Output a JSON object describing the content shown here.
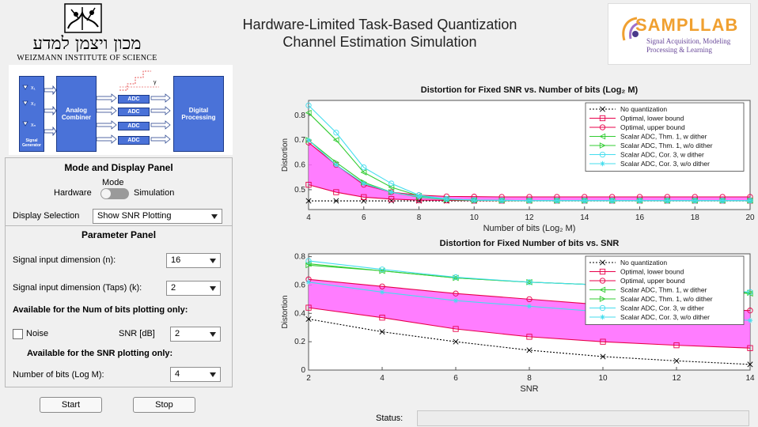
{
  "header": {
    "title_line1": "Hardware-Limited Task-Based Quantization",
    "title_line2": "Channel Estimation Simulation",
    "weizmann_hebrew": "מכון ויצמן למדע",
    "weizmann_english": "WEIZMANN INSTITUTE OF SCIENCE",
    "sampl_name": "SAMPLLAB",
    "sampl_tagline_1": "Signal Acquisition, Modeling",
    "sampl_tagline_2": "Processing & Learning"
  },
  "diagram": {
    "combiner_label": "Analog Combiner",
    "processing_label": "Digital Processing",
    "adc_label": "ADC",
    "generator_label": "Signal Generator",
    "inputs": [
      "x₁",
      "x₂",
      "xₙ"
    ],
    "gamma_label": "γ"
  },
  "mode_panel": {
    "title": "Mode and Display Panel",
    "mode_label": "Mode",
    "hardware_label": "Hardware",
    "simulation_label": "Simulation",
    "display_label": "Display Selection",
    "display_value": "Show SNR Plotting"
  },
  "parameter_panel": {
    "title": "Parameter Panel",
    "n_label": "Signal input dimension (n):",
    "n_value": "16",
    "k_label": "Signal input dimension (Taps) (k):",
    "k_value": "2",
    "bits_only_label": "Available for the Num of bits plotting only:",
    "noise_label": "Noise",
    "snr_label": "SNR [dB]",
    "snr_value": "2",
    "snr_only_label": "Available for the SNR plotting only:",
    "bits_label": "Number of bits (Log M):",
    "bits_value": "4"
  },
  "controls": {
    "start_label": "Start",
    "stop_label": "Stop",
    "status_label": "Status:"
  },
  "chart_data": [
    {
      "type": "line",
      "title": "Distortion for Fixed SNR vs. Number of bits (Log₂ M)",
      "xlabel": "Number of bits (Log₂ M)",
      "ylabel": "Distortion",
      "xlim": [
        4,
        20
      ],
      "ylim": [
        0.42,
        0.86
      ],
      "xticks": [
        4,
        6,
        8,
        10,
        12,
        14,
        16,
        18,
        20
      ],
      "yticks": [
        0.5,
        0.6,
        0.7,
        0.8
      ],
      "legend_position": "top-right",
      "fill_between": [
        "Optimal, lower bound",
        "Optimal, upper bound"
      ],
      "fill_color": "#ff66ff",
      "x": [
        4,
        5,
        6,
        7,
        8,
        9,
        10,
        11,
        12,
        13,
        14,
        15,
        16,
        17,
        18,
        19,
        20
      ],
      "series": [
        {
          "name": "No quantization",
          "color": "#000000",
          "dash": "2,2",
          "marker": "x",
          "values": [
            0.455,
            0.455,
            0.455,
            0.455,
            0.455,
            0.455,
            0.455,
            0.455,
            0.455,
            0.455,
            0.455,
            0.455,
            0.455,
            0.455,
            0.455,
            0.455,
            0.455
          ]
        },
        {
          "name": "Optimal, lower bound",
          "color": "#e8004a",
          "marker": "square",
          "values": [
            0.52,
            0.49,
            0.47,
            0.462,
            0.458,
            0.457,
            0.456,
            0.456,
            0.456,
            0.456,
            0.456,
            0.456,
            0.456,
            0.456,
            0.456,
            0.456,
            0.456
          ]
        },
        {
          "name": "Optimal, upper bound",
          "color": "#e8004a",
          "marker": "circle",
          "values": [
            0.69,
            0.6,
            0.52,
            0.49,
            0.478,
            0.473,
            0.472,
            0.471,
            0.471,
            0.471,
            0.471,
            0.471,
            0.471,
            0.471,
            0.471,
            0.471,
            0.471
          ]
        },
        {
          "name": "Scalar ADC, Thm. 1, w dither",
          "color": "#33cc33",
          "marker": "tri-left",
          "values": [
            0.81,
            0.7,
            0.57,
            0.51,
            0.475,
            0.462,
            0.458,
            0.457,
            0.456,
            0.456,
            0.456,
            0.456,
            0.456,
            0.456,
            0.456,
            0.456,
            0.456
          ]
        },
        {
          "name": "Scalar ADC, Thm. 1, w/o dither",
          "color": "#33cc33",
          "marker": "tri-right",
          "values": [
            0.7,
            0.61,
            0.53,
            0.49,
            0.47,
            0.46,
            0.457,
            0.456,
            0.456,
            0.456,
            0.456,
            0.456,
            0.456,
            0.456,
            0.456,
            0.456,
            0.456
          ]
        },
        {
          "name": "Scalar ADC, Cor. 3, w dither",
          "color": "#44ddee",
          "marker": "circle",
          "values": [
            0.84,
            0.73,
            0.59,
            0.525,
            0.478,
            0.463,
            0.458,
            0.457,
            0.456,
            0.456,
            0.456,
            0.456,
            0.456,
            0.456,
            0.456,
            0.456,
            0.456
          ]
        },
        {
          "name": "Scalar ADC, Cor. 3, w/o dither",
          "color": "#44ddee",
          "marker": "star",
          "values": [
            0.7,
            0.6,
            0.525,
            0.49,
            0.472,
            0.462,
            0.458,
            0.457,
            0.456,
            0.456,
            0.456,
            0.456,
            0.456,
            0.456,
            0.456,
            0.456,
            0.456
          ]
        }
      ]
    },
    {
      "type": "line",
      "title": "Distortion for Fixed Number of bits vs. SNR",
      "xlabel": "SNR",
      "ylabel": "Distortion",
      "xlim": [
        2,
        14
      ],
      "ylim": [
        0,
        0.82
      ],
      "xticks": [
        2,
        4,
        6,
        8,
        10,
        12,
        14
      ],
      "yticks": [
        0,
        0.2,
        0.4,
        0.6,
        0.8
      ],
      "legend_position": "top-right",
      "fill_between": [
        "Optimal, lower bound",
        "Optimal, upper bound"
      ],
      "fill_color": "#ff66ff",
      "x": [
        2,
        4,
        6,
        8,
        10,
        12,
        14
      ],
      "series": [
        {
          "name": "No quantization",
          "color": "#000000",
          "dash": "2,2",
          "marker": "x",
          "values": [
            0.36,
            0.27,
            0.2,
            0.14,
            0.095,
            0.065,
            0.04
          ]
        },
        {
          "name": "Optimal, lower bound",
          "color": "#e8004a",
          "marker": "square",
          "values": [
            0.44,
            0.37,
            0.29,
            0.235,
            0.2,
            0.175,
            0.155
          ]
        },
        {
          "name": "Optimal, upper bound",
          "color": "#e8004a",
          "marker": "circle",
          "values": [
            0.64,
            0.59,
            0.54,
            0.5,
            0.46,
            0.43,
            0.42
          ]
        },
        {
          "name": "Scalar ADC, Thm. 1, w dither",
          "color": "#33cc33",
          "marker": "tri-left",
          "values": [
            0.75,
            0.7,
            0.65,
            0.62,
            0.6,
            0.57,
            0.54
          ]
        },
        {
          "name": "Scalar ADC, Thm. 1, w/o dither",
          "color": "#33cc33",
          "marker": "tri-right",
          "values": [
            0.74,
            0.7,
            0.65,
            0.62,
            0.6,
            0.57,
            0.545
          ]
        },
        {
          "name": "Scalar ADC, Cor. 3, w dither",
          "color": "#44ddee",
          "marker": "circle",
          "values": [
            0.77,
            0.71,
            0.655,
            0.62,
            0.6,
            0.58,
            0.55
          ]
        },
        {
          "name": "Scalar ADC, Cor. 3, w/o dither",
          "color": "#44ddee",
          "marker": "star",
          "values": [
            0.62,
            0.55,
            0.49,
            0.45,
            0.41,
            0.38,
            0.35
          ]
        }
      ]
    }
  ]
}
